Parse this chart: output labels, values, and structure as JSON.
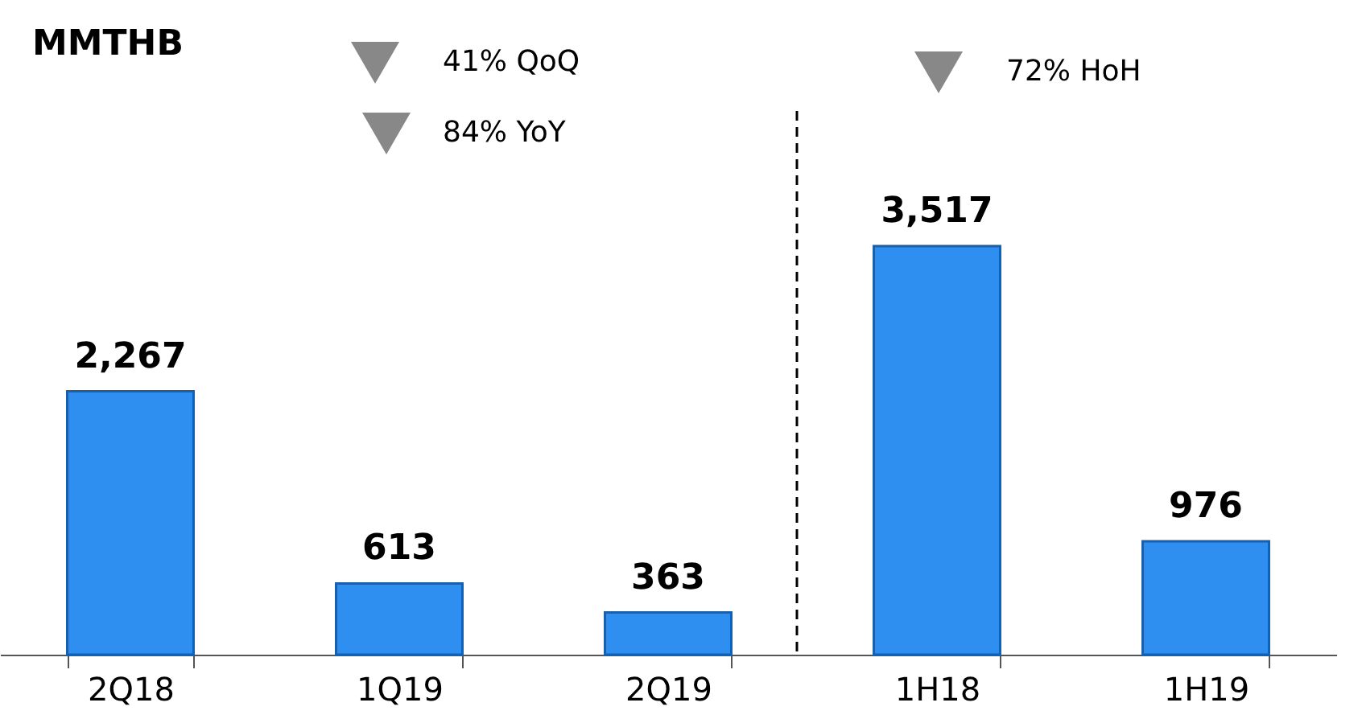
{
  "chart_data": {
    "type": "bar",
    "title": "MMTHB",
    "categories": [
      "2Q18",
      "1Q19",
      "2Q19",
      "1H18",
      "1H19"
    ],
    "values": [
      2267,
      613,
      363,
      3517,
      976
    ],
    "color": "#2f8ff0",
    "data_labels": true,
    "value_labels": [
      "2,267",
      "613",
      "363",
      "3,517",
      "976"
    ],
    "annotations": [
      "41% QoQ",
      "84%  YoY",
      "72% HoH"
    ],
    "grid": false
  }
}
